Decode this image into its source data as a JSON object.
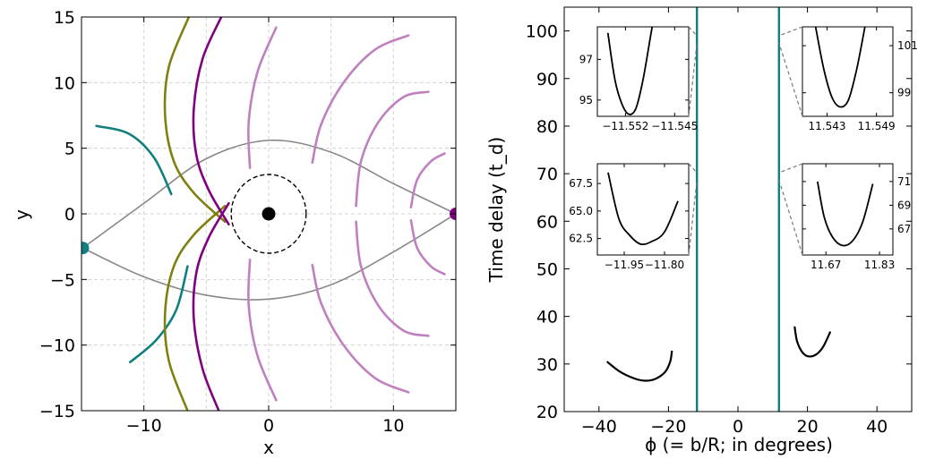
{
  "chart_data": [
    {
      "type": "line",
      "panel": "left",
      "xlabel": "x",
      "ylabel": "y",
      "xlim": [
        -15,
        15
      ],
      "ylim": [
        -15,
        15
      ],
      "xticks": [
        "−10",
        "0",
        "10"
      ],
      "xtick_values": [
        -10,
        0,
        10
      ],
      "yticks": [
        "−15",
        "−10",
        "−5",
        "0",
        "5",
        "10",
        "15"
      ],
      "ytick_values": [
        -15,
        -10,
        -5,
        0,
        5,
        10,
        15
      ],
      "grid": true,
      "grid_color": "#d3d3d3",
      "colors": {
        "teal": "#107f7f",
        "olive": "#808010",
        "purple": "#800080",
        "lilac": "#c080c0",
        "gray": "#888888",
        "black": "#000000"
      },
      "lens_center": [
        0,
        0
      ],
      "einstein_circle_radius": 3.0,
      "source_points": [
        {
          "x": -14.9,
          "y": -2.6,
          "color": "teal"
        },
        {
          "x": 15.0,
          "y": 0.0,
          "color": "purple"
        }
      ],
      "light_paths": [
        {
          "color": "gray",
          "points": [
            [
              -14.9,
              -2.6
            ],
            [
              -10,
              0.8
            ],
            [
              -5,
              4.2
            ],
            [
              0,
              5.6
            ],
            [
              5,
              4.7
            ],
            [
              10,
              2.3
            ],
            [
              15,
              0.0
            ]
          ]
        },
        {
          "color": "gray",
          "points": [
            [
              -14.9,
              -2.6
            ],
            [
              -10,
              -4.8
            ],
            [
              -5,
              -6.2
            ],
            [
              0,
              -6.5
            ],
            [
              5,
              -5.4
            ],
            [
              10,
              -2.9
            ],
            [
              15,
              0.0
            ]
          ]
        }
      ],
      "wavefronts": [
        {
          "color": "teal",
          "points": [
            [
              -13.8,
              6.7
            ],
            [
              -11.2,
              6.1
            ],
            [
              -9.2,
              4.3
            ],
            [
              -7.8,
              1.5
            ]
          ]
        },
        {
          "color": "teal",
          "points": [
            [
              -11.1,
              -11.3
            ],
            [
              -9.0,
              -9.6
            ],
            [
              -7.4,
              -7.3
            ],
            [
              -6.5,
              -4.0
            ]
          ]
        },
        {
          "color": "olive",
          "points": [
            [
              -6.4,
              15.0
            ],
            [
              -8.0,
              11.2
            ],
            [
              -8.3,
              7.5
            ],
            [
              -7.6,
              4.0
            ],
            [
              -6.0,
              1.6
            ],
            [
              -3.5,
              -0.6
            ]
          ]
        },
        {
          "color": "olive",
          "points": [
            [
              -3.5,
              0.6
            ],
            [
              -6.0,
              -1.6
            ],
            [
              -7.6,
              -4.0
            ],
            [
              -8.3,
              -7.5
            ],
            [
              -8.0,
              -11.2
            ],
            [
              -6.5,
              -15.0
            ]
          ]
        },
        {
          "color": "purple",
          "points": [
            [
              -3.8,
              15.0
            ],
            [
              -5.3,
              11.8
            ],
            [
              -6.0,
              8.0
            ],
            [
              -5.8,
              4.5
            ],
            [
              -4.8,
              1.8
            ],
            [
              -3.2,
              -0.8
            ]
          ]
        },
        {
          "color": "purple",
          "points": [
            [
              -3.2,
              0.8
            ],
            [
              -4.8,
              -1.8
            ],
            [
              -5.8,
              -4.5
            ],
            [
              -6.0,
              -8.0
            ],
            [
              -5.3,
              -11.8
            ],
            [
              -4.0,
              -15.0
            ]
          ]
        },
        {
          "color": "lilac",
          "points": [
            [
              -1.5,
              3.5
            ],
            [
              -1.6,
              7.0
            ],
            [
              -0.9,
              10.8
            ],
            [
              0.6,
              14.2
            ]
          ]
        },
        {
          "color": "lilac",
          "points": [
            [
              -1.5,
              -3.5
            ],
            [
              -1.6,
              -7.0
            ],
            [
              -0.9,
              -10.8
            ],
            [
              0.6,
              -14.2
            ]
          ]
        },
        {
          "color": "lilac",
          "points": [
            [
              3.5,
              3.9
            ],
            [
              4.2,
              6.8
            ],
            [
              6.0,
              10.0
            ],
            [
              8.5,
              12.5
            ],
            [
              11.2,
              13.6
            ]
          ]
        },
        {
          "color": "lilac",
          "points": [
            [
              3.5,
              -3.9
            ],
            [
              4.2,
              -6.8
            ],
            [
              6.0,
              -10.0
            ],
            [
              8.5,
              -12.5
            ],
            [
              11.2,
              -13.6
            ]
          ]
        },
        {
          "color": "lilac",
          "points": [
            [
              7.0,
              0.6
            ],
            [
              7.4,
              4.0
            ],
            [
              8.8,
              7.0
            ],
            [
              10.8,
              8.9
            ],
            [
              12.8,
              9.3
            ]
          ]
        },
        {
          "color": "lilac",
          "points": [
            [
              7.0,
              -0.6
            ],
            [
              7.4,
              -4.0
            ],
            [
              8.8,
              -7.0
            ],
            [
              10.8,
              -8.9
            ],
            [
              12.8,
              -9.3
            ]
          ]
        },
        {
          "color": "lilac",
          "points": [
            [
              11.4,
              0.5
            ],
            [
              11.9,
              2.6
            ],
            [
              13.0,
              4.0
            ],
            [
              14.1,
              4.6
            ]
          ]
        },
        {
          "color": "lilac",
          "points": [
            [
              11.4,
              -0.5
            ],
            [
              11.9,
              -2.6
            ],
            [
              13.0,
              -4.0
            ],
            [
              14.1,
              -4.6
            ]
          ]
        }
      ]
    },
    {
      "type": "line",
      "panel": "right",
      "xlabel": "ϕ (= b/R; in degrees)",
      "ylabel": "Time delay (t_d)",
      "xlim": [
        -50,
        50
      ],
      "ylim": [
        20,
        105
      ],
      "xticks": [
        "−40",
        "−20",
        "0",
        "20",
        "40"
      ],
      "xtick_values": [
        -40,
        -20,
        0,
        20,
        40
      ],
      "yticks": [
        "20",
        "30",
        "40",
        "50",
        "60",
        "70",
        "80",
        "90",
        "100"
      ],
      "ytick_values": [
        20,
        30,
        40,
        50,
        60,
        70,
        80,
        90,
        100
      ],
      "grid": false,
      "vertical_lines": [
        {
          "x": -11.8,
          "color": "#107f7f"
        },
        {
          "x": 11.8,
          "color": "#107f7f"
        }
      ],
      "series": [
        {
          "color": "#000000",
          "points": [
            [
              -37.7,
              30.5
            ],
            [
              -34,
              28.4
            ],
            [
              -30,
              27.0
            ],
            [
              -27,
              26.5
            ],
            [
              -24,
              26.8
            ],
            [
              -21,
              28.3
            ],
            [
              -19.5,
              30.5
            ],
            [
              -19.0,
              32.8
            ]
          ]
        },
        {
          "color": "#000000",
          "points": [
            [
              16.3,
              37.9
            ],
            [
              17.0,
              34.8
            ],
            [
              18.5,
              32.5
            ],
            [
              20.3,
              31.6
            ],
            [
              22.5,
              32.0
            ],
            [
              24.5,
              33.6
            ],
            [
              26.6,
              36.8
            ]
          ]
        }
      ],
      "insets": [
        {
          "position": "top-left",
          "xlim": [
            -11.556,
            -11.543
          ],
          "ylim": [
            94.2,
            98.6
          ],
          "xticks": [
            "−11.552",
            "−11.545"
          ],
          "xtick_values": [
            -11.552,
            -11.545
          ],
          "yticks": [
            "95",
            "97"
          ],
          "ytick_values": [
            95,
            97
          ],
          "ytick_side": "left",
          "curve": [
            [
              -11.5545,
              98.3
            ],
            [
              -11.5535,
              96.0
            ],
            [
              -11.5525,
              94.8
            ],
            [
              -11.5515,
              94.3
            ],
            [
              -11.5505,
              94.6
            ],
            [
              -11.5495,
              96.0
            ],
            [
              -11.5485,
              98.0
            ],
            [
              -11.5482,
              98.6
            ]
          ]
        },
        {
          "position": "top-right",
          "xlim": [
            11.54,
            11.551
          ],
          "ylim": [
            98.0,
            101.8
          ],
          "xticks": [
            "11.543",
            "11.549"
          ],
          "xtick_values": [
            11.543,
            11.549
          ],
          "yticks": [
            "99",
            "101"
          ],
          "ytick_values": [
            99,
            101
          ],
          "ytick_side": "right",
          "curve": [
            [
              11.5416,
              101.8
            ],
            [
              11.5426,
              100.0
            ],
            [
              11.5436,
              98.8
            ],
            [
              11.5446,
              98.4
            ],
            [
              11.5456,
              98.7
            ],
            [
              11.5466,
              100.0
            ],
            [
              11.5476,
              101.8
            ]
          ]
        },
        {
          "position": "middle-left",
          "xlim": [
            -12.05,
            -11.71
          ],
          "ylim": [
            61.0,
            69.3
          ],
          "xticks": [
            "−11.95",
            "−11.80"
          ],
          "xtick_values": [
            -11.95,
            -11.8
          ],
          "yticks": [
            "62.5",
            "65.0",
            "67.5"
          ],
          "ytick_values": [
            62.5,
            65.0,
            67.5
          ],
          "ytick_side": "left",
          "curve": [
            [
              -12.01,
              68.5
            ],
            [
              -11.97,
              64.3
            ],
            [
              -11.93,
              62.8
            ],
            [
              -11.89,
              62.0
            ],
            [
              -11.85,
              62.2
            ],
            [
              -11.8,
              63.1
            ],
            [
              -11.75,
              65.9
            ]
          ]
        },
        {
          "position": "middle-right",
          "xlim": [
            11.6,
            11.87
          ],
          "ylim": [
            64.8,
            72.5
          ],
          "xticks": [
            "11.67",
            "11.83"
          ],
          "xtick_values": [
            11.67,
            11.83
          ],
          "yticks": [
            "67",
            "69",
            "71"
          ],
          "ytick_values": [
            67,
            69,
            71
          ],
          "ytick_side": "right",
          "curve": [
            [
              11.645,
              71.0
            ],
            [
              11.665,
              68.0
            ],
            [
              11.69,
              66.3
            ],
            [
              11.72,
              65.6
            ],
            [
              11.75,
              66.0
            ],
            [
              11.78,
              67.6
            ],
            [
              11.81,
              70.8
            ]
          ]
        }
      ]
    }
  ]
}
